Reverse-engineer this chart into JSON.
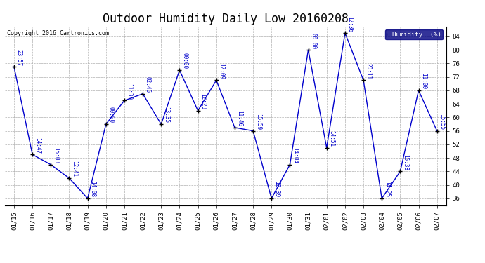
{
  "title": "Outdoor Humidity Daily Low 20160208",
  "copyright": "Copyright 2016 Cartronics.com",
  "legend_label": "Humidity  (%)",
  "background_color": "#ffffff",
  "plot_background": "#ffffff",
  "line_color": "#0000cc",
  "marker_color": "#000000",
  "text_color": "#0000cc",
  "grid_color": "#b0b0b0",
  "ylim": [
    34,
    87
  ],
  "yticks": [
    36,
    40,
    44,
    48,
    52,
    56,
    60,
    64,
    68,
    72,
    76,
    80,
    84
  ],
  "dates": [
    "01/15",
    "01/16",
    "01/17",
    "01/18",
    "01/19",
    "01/20",
    "01/21",
    "01/22",
    "01/23",
    "01/24",
    "01/25",
    "01/26",
    "01/27",
    "01/28",
    "01/29",
    "01/30",
    "01/31",
    "02/01",
    "02/02",
    "02/03",
    "02/04",
    "02/05",
    "02/06",
    "02/07"
  ],
  "values": [
    75,
    49,
    46,
    42,
    36,
    58,
    65,
    67,
    58,
    74,
    62,
    71,
    57,
    56,
    36,
    46,
    80,
    51,
    85,
    71,
    36,
    44,
    68,
    56
  ],
  "times": [
    "23:57",
    "14:47",
    "15:03",
    "12:41",
    "14:08",
    "00:00",
    "11:30",
    "02:46",
    "13:35",
    "00:00",
    "12:23",
    "12:09",
    "11:46",
    "15:59",
    "12:39",
    "14:04",
    "00:00",
    "14:51",
    "12:36",
    "20:11",
    "14:25",
    "15:38",
    "11:00",
    "15:55"
  ],
  "title_fontsize": 12,
  "tick_fontsize": 6.5,
  "label_fontsize": 5.5,
  "copyright_fontsize": 6
}
